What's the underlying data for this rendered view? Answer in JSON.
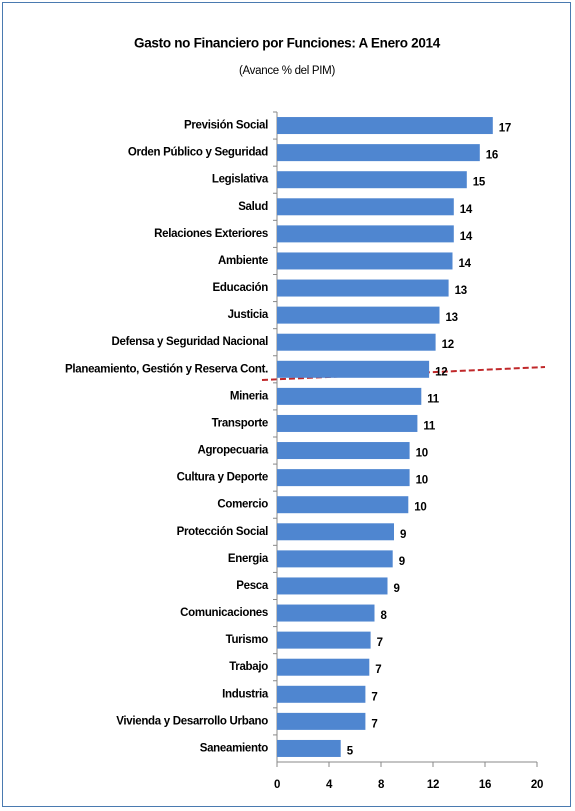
{
  "chart_data": {
    "type": "bar",
    "orientation": "horizontal",
    "title": "Gasto no Financiero por Funciones: A  Enero 2014",
    "subtitle": "(Avance % del PIM)",
    "categories": [
      "Previsión Social",
      "Orden Público y Seguridad",
      "Legislativa",
      "Salud",
      "Relaciones Exteriores",
      "Ambiente",
      "Educación",
      "Justicia",
      "Defensa y Seguridad Nacional",
      "Planeamiento, Gestión y Reserva Cont.",
      "Mineria",
      "Transporte",
      "Agropecuaria",
      "Cultura y Deporte",
      "Comercio",
      "Protección Social",
      "Energia",
      "Pesca",
      "Comunicaciones",
      "Turismo",
      "Trabajo",
      "Industria",
      "Vivienda y Desarrollo Urbano",
      "Saneamiento"
    ],
    "values": [
      16.6,
      15.6,
      14.6,
      13.6,
      13.6,
      13.5,
      13.2,
      12.5,
      12.2,
      11.7,
      11.1,
      10.8,
      10.2,
      10.2,
      10.1,
      9.0,
      8.9,
      8.5,
      7.5,
      7.2,
      7.1,
      6.8,
      6.8,
      4.9
    ],
    "value_labels": [
      "17",
      "16",
      "15",
      "14",
      "14",
      "14",
      "13",
      "13",
      "12",
      "12",
      "11",
      "11",
      "10",
      "10",
      "10",
      "9",
      "9",
      "9",
      "8",
      "7",
      "7",
      "7",
      "7",
      "5"
    ],
    "color": "#4f86d0",
    "xlim": [
      0,
      20
    ],
    "xticks": [
      0,
      4,
      8,
      12,
      16,
      20
    ]
  }
}
